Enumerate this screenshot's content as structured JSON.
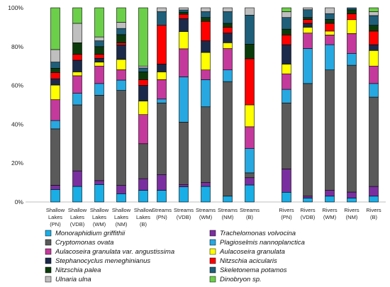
{
  "chart_data": {
    "type": "bar",
    "stacked": true,
    "normalized": true,
    "ylim": [
      0,
      100
    ],
    "ytick_labels": [
      "0%",
      "20%",
      "40%",
      "60%",
      "80%",
      "100%"
    ],
    "grid": false,
    "legend_position": "bottom",
    "groups": [
      {
        "name": "Shallow Lakes",
        "indices": [
          0,
          1,
          2,
          3,
          4
        ]
      },
      {
        "name": "Streams",
        "indices": [
          5,
          6,
          7,
          8,
          9
        ]
      },
      {
        "name": "Rivers",
        "indices": [
          10,
          11,
          12,
          13,
          14
        ]
      }
    ],
    "categories": [
      [
        "Shallow",
        "Lakes",
        "(PN)"
      ],
      [
        "Shallow",
        "Lakes",
        "(VDB)"
      ],
      [
        "Shallow",
        "Lakes",
        "(WM)"
      ],
      [
        "Shallow",
        "Lakes",
        "(NM)"
      ],
      [
        "Shallow",
        "Lakes",
        "(B)"
      ],
      [
        "Streams",
        "(PN)"
      ],
      [
        "Streams",
        "(VDB)"
      ],
      [
        "Streams",
        "(WM)"
      ],
      [
        "Streams",
        "(NM)"
      ],
      [
        "Streams",
        "(B)"
      ],
      [
        "Rivers",
        "(PN)"
      ],
      [
        "Rivers",
        "(VDB)"
      ],
      [
        "Rivers",
        "(WM)"
      ],
      [
        "Rivers",
        "(NM)"
      ],
      [
        "Rivers",
        "(B)"
      ]
    ],
    "series": [
      {
        "name": "Monoraphidium griffithii",
        "color": "#1aaee6",
        "values": [
          6,
          8,
          9,
          4,
          6,
          6,
          7,
          8,
          3,
          7,
          5,
          2,
          3,
          2,
          3
        ]
      },
      {
        "name": "Trachelomonas volvocina",
        "color": "#7a2fa0",
        "values": [
          2,
          8,
          2,
          4,
          6,
          8,
          1,
          2,
          0,
          3,
          12,
          1,
          3,
          3,
          5
        ]
      },
      {
        "name": "Cryptomonas ovata",
        "color": "#5a5a5a",
        "values": [
          27,
          34,
          44,
          46,
          18,
          37,
          29,
          39,
          59,
          2,
          34,
          58,
          62,
          64,
          46
        ]
      },
      {
        "name": "Plagioselmis nannoplanctica",
        "color": "#27a8e0",
        "values": [
          4,
          6,
          6,
          5,
          0,
          2,
          21,
          14,
          6,
          10,
          7,
          18,
          13,
          6,
          7
        ]
      },
      {
        "name": "Aulacoseira granulata var. angustissima",
        "color": "#c4399c",
        "values": [
          10,
          9,
          9,
          5,
          15,
          10,
          13,
          5,
          11,
          9,
          8,
          8,
          5,
          10,
          9
        ]
      },
      {
        "name": "Aulacoseira granulata",
        "color": "#ffff00",
        "values": [
          7,
          2,
          2,
          5,
          7,
          4,
          8,
          9,
          3,
          9,
          5,
          3,
          2,
          7,
          8
        ]
      },
      {
        "name": "Stephanocyclus meneghinianus",
        "color": "#1b2a4a",
        "values": [
          3,
          6,
          2,
          7,
          8,
          4,
          6,
          6,
          5,
          0,
          10,
          2,
          0,
          0,
          3
        ]
      },
      {
        "name": "Nitzschia acicularis",
        "color": "#ff0000",
        "values": [
          3,
          3,
          2,
          1,
          3,
          20,
          2,
          10,
          3,
          19,
          5,
          2,
          4,
          3,
          7
        ]
      },
      {
        "name": "Nitzschia palea",
        "color": "#0b3b0b",
        "values": [
          2,
          6,
          4,
          4,
          4,
          0,
          1,
          2,
          2,
          6,
          3,
          1,
          2,
          2,
          3
        ]
      },
      {
        "name": "Skeletonema potamos",
        "color": "#1f5f7a",
        "values": [
          3,
          0,
          3,
          3,
          2,
          7,
          1,
          3,
          6,
          12,
          6,
          4,
          3,
          1,
          5
        ]
      },
      {
        "name": "Ulnaria ulna",
        "color": "#bfbfbf",
        "values": [
          6,
          10,
          2,
          3,
          1,
          2,
          1,
          2,
          2,
          3,
          3,
          1,
          3,
          0,
          2
        ]
      },
      {
        "name": "Dinobryon sp.",
        "color": "#6ccf4a",
        "values": [
          20,
          8,
          15,
          7,
          30,
          0,
          0,
          0,
          0,
          0,
          2,
          0,
          0,
          0,
          2
        ]
      }
    ]
  }
}
